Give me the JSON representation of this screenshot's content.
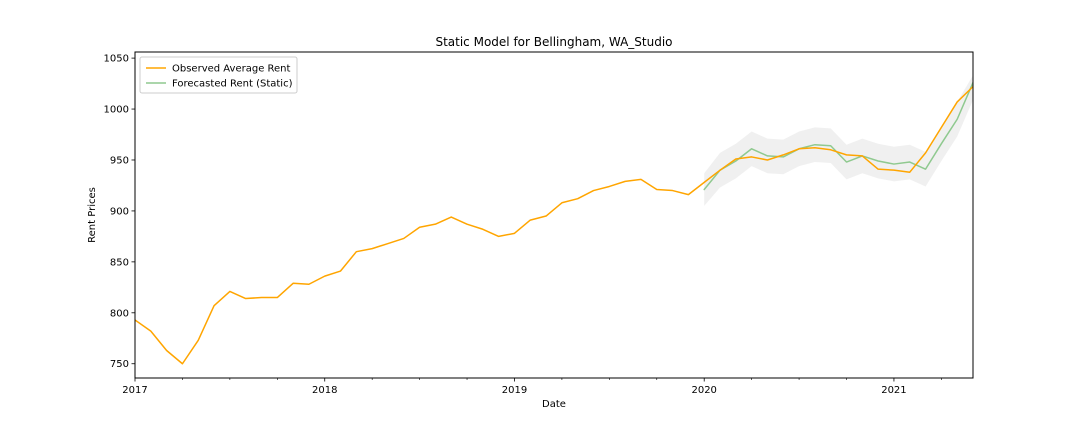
{
  "chart_data": {
    "type": "line",
    "title": "Static Model for Bellingham, WA_Studio",
    "xlabel": "Date",
    "ylabel": "Rent Prices",
    "xlim": [
      "2017-01",
      "2021-06"
    ],
    "ylim": [
      736,
      1056
    ],
    "x_ticks": [
      {
        "date": "2017-01",
        "label": "2017"
      },
      {
        "date": "2018-01",
        "label": "2018"
      },
      {
        "date": "2019-01",
        "label": "2019"
      },
      {
        "date": "2020-01",
        "label": "2020"
      },
      {
        "date": "2021-01",
        "label": "2021"
      }
    ],
    "x_minor_ticks": [
      "2017-04",
      "2017-07",
      "2017-10",
      "2018-04",
      "2018-07",
      "2018-10",
      "2019-04",
      "2019-07",
      "2019-10",
      "2020-04",
      "2020-07",
      "2020-10",
      "2021-04"
    ],
    "y_ticks": [
      750,
      800,
      850,
      900,
      950,
      1000,
      1050
    ],
    "legend_position": "top-left",
    "grid": false,
    "series": [
      {
        "name": "Observed Average Rent",
        "color": "#ffa500",
        "x": [
          "2017-01",
          "2017-02",
          "2017-03",
          "2017-04",
          "2017-05",
          "2017-06",
          "2017-07",
          "2017-08",
          "2017-09",
          "2017-10",
          "2017-11",
          "2017-12",
          "2018-01",
          "2018-02",
          "2018-03",
          "2018-04",
          "2018-05",
          "2018-06",
          "2018-07",
          "2018-08",
          "2018-09",
          "2018-10",
          "2018-11",
          "2018-12",
          "2019-01",
          "2019-02",
          "2019-03",
          "2019-04",
          "2019-05",
          "2019-06",
          "2019-07",
          "2019-08",
          "2019-09",
          "2019-10",
          "2019-11",
          "2019-12",
          "2020-01",
          "2020-02",
          "2020-03",
          "2020-04",
          "2020-05",
          "2020-06",
          "2020-07",
          "2020-08",
          "2020-09",
          "2020-10",
          "2020-11",
          "2020-12",
          "2021-01",
          "2021-02",
          "2021-03",
          "2021-04",
          "2021-05",
          "2021-06"
        ],
        "values": [
          793,
          782,
          763,
          750,
          773,
          807,
          821,
          814,
          815,
          815,
          829,
          828,
          836,
          841,
          860,
          863,
          868,
          873,
          884,
          887,
          894,
          887,
          882,
          875,
          878,
          891,
          895,
          908,
          912,
          920,
          924,
          929,
          931,
          921,
          920,
          916,
          928,
          940,
          951,
          953,
          950,
          955,
          961,
          962,
          960,
          955,
          954,
          941,
          940,
          938,
          957,
          982,
          1007,
          1022
        ]
      },
      {
        "name": "Forecasted Rent (Static)",
        "color": "#8fc98f",
        "x": [
          "2020-01",
          "2020-02",
          "2020-03",
          "2020-04",
          "2020-05",
          "2020-06",
          "2020-07",
          "2020-08",
          "2020-09",
          "2020-10",
          "2020-11",
          "2020-12",
          "2021-01",
          "2021-02",
          "2021-03",
          "2021-04",
          "2021-05",
          "2021-06"
        ],
        "values": [
          921,
          940,
          949,
          961,
          954,
          953,
          961,
          965,
          964,
          948,
          954,
          949,
          946,
          948,
          941,
          966,
          990,
          1026
        ],
        "lower": [
          905,
          923,
          932,
          944,
          937,
          936,
          944,
          948,
          947,
          931,
          937,
          932,
          929,
          931,
          924,
          949,
          973,
          1009
        ],
        "upper": [
          937,
          957,
          966,
          978,
          971,
          970,
          978,
          982,
          981,
          965,
          971,
          966,
          963,
          965,
          958,
          983,
          1007,
          1033
        ]
      }
    ]
  }
}
